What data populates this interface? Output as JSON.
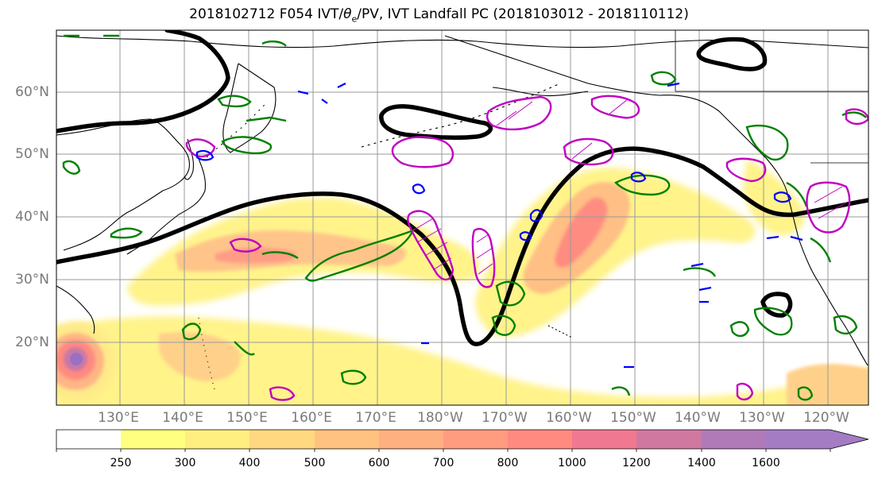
{
  "title": "2018102712 F054 IVT/θe/PV, IVT Landfall PC (2018103012 - 2018110112)",
  "title_main": "2018102712 F054 IVT/",
  "title_theta": "θ",
  "title_sub": "e",
  "title_rest": "/PV, IVT Landfall PC (2018103012 - 2018110112)",
  "lat_labels": [
    "60°N",
    "50°N",
    "40°N",
    "30°N",
    "20°N"
  ],
  "lon_labels": [
    "130°E",
    "140°E",
    "150°E",
    "160°E",
    "170°E",
    "180°W",
    "170°W",
    "160°W",
    "150°W",
    "140°W",
    "130°W",
    "120°W"
  ],
  "colorbar": {
    "ticks": [
      "250",
      "300",
      "400",
      "500",
      "600",
      "700",
      "800",
      "1000",
      "1200",
      "1400",
      "1600"
    ],
    "colors": [
      "#ffffff",
      "#ffff80",
      "#ffee80",
      "#ffd880",
      "#ffc280",
      "#ffb080",
      "#ff9c80",
      "#ff8a80",
      "#f07890",
      "#d078a0",
      "#b07ab8",
      "#a47cc4"
    ]
  },
  "colors": {
    "ivt_contour": "#000000",
    "theta_e_contour": "#008000",
    "pv_contour": "#c000c0",
    "blue_contour": "#0000ff",
    "coastline": "#000000",
    "grid": "#999999"
  }
}
